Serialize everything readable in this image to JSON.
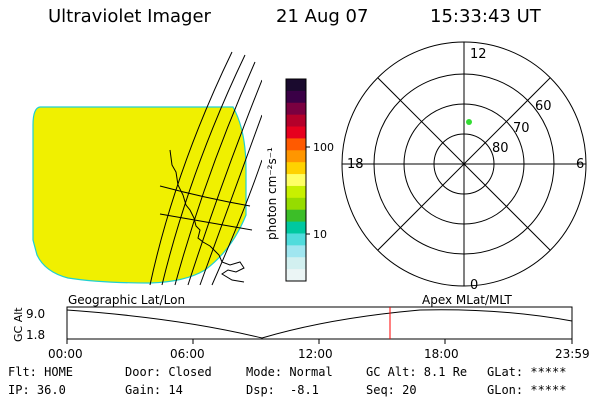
{
  "header": {
    "title": "Ultraviolet Imager",
    "date": "21 Aug 07",
    "time": "15:33:43 UT"
  },
  "colorbar": {
    "unit_label": "photon cm⁻²s⁻¹",
    "ticks": [
      "100",
      "10"
    ],
    "colors": [
      "#1a0a2e",
      "#3a0046",
      "#7a0040",
      "#b4002a",
      "#e6001e",
      "#ff5a00",
      "#ff9600",
      "#ffd200",
      "#ffff64",
      "#c8f000",
      "#96dc00",
      "#3cbe28",
      "#00c8a0",
      "#50dcdc",
      "#a0e6f0",
      "#d2f0f0",
      "#ebf5f5"
    ]
  },
  "geo_map": {
    "label": "Geographic Lat/Lon",
    "fill_color": "#f0f000",
    "edge_color": "#20d0d0"
  },
  "polar_plot": {
    "label": "Apex MLat/MLT",
    "mlt_labels": [
      "12",
      "18",
      "6",
      "0"
    ],
    "lat_labels": [
      "60",
      "70",
      "80"
    ],
    "marker_color": "#33dd33"
  },
  "orbit_plot": {
    "ylabel": "GC Alt",
    "yticks": [
      "9.0",
      "1.8"
    ],
    "xticks": [
      "00:00",
      "06:00",
      "12:00",
      "18:00",
      "23:59"
    ],
    "current_marker_color": "#ff0000"
  },
  "status": {
    "flt": "Flt: HOME",
    "ip": "IP: 36.0",
    "door": "Door: Closed",
    "gain": "Gain: 14",
    "mode": "Mode: Normal",
    "dsp_label": "Dsp:",
    "dsp_value": "-8.1",
    "gc_alt": "GC Alt: 8.1 Re",
    "seq": "Seq: 20",
    "glat": "GLat: *****",
    "glon": "GLon: *****"
  }
}
